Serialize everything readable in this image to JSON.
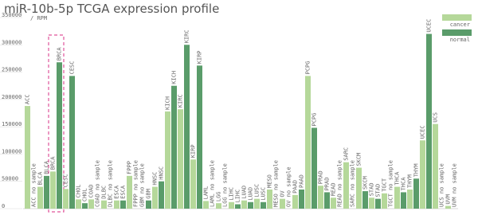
{
  "chart_data": {
    "type": "bar",
    "title": "miR-10b-5p TCGA expression profile",
    "y_label": "/ RPM",
    "missing_label": "no sample",
    "categories": [
      "ACC",
      "BLCA",
      "BRCA",
      "CESC",
      "CHOL",
      "COAD",
      "DLBC",
      "ESCA",
      "FPPP",
      "GBM",
      "HNSC",
      "KICH",
      "KIRC",
      "KIRP",
      "LAML",
      "LGG",
      "LIHC",
      "LUAD",
      "LUSC",
      "MESO",
      "OV",
      "PAAD",
      "PCPG",
      "PRAD",
      "READ",
      "SARC",
      "SKCM",
      "STAD",
      "TGCT",
      "THCA",
      "THYM",
      "UCEC",
      "UCS",
      "UVM"
    ],
    "series": [
      {
        "name": "cancer",
        "color": "#b5d89a",
        "values": [
          188000,
          40000,
          68000,
          36000,
          17000,
          17000,
          15000,
          15000,
          60000,
          null,
          40000,
          178000,
          182000,
          90000,
          14000,
          10000,
          12000,
          15000,
          18000,
          35000,
          18000,
          25000,
          243000,
          42000,
          20000,
          85000,
          75000,
          20000,
          28000,
          40000,
          35000,
          125000,
          155000,
          5000
        ]
      },
      {
        "name": "normal",
        "color": "#5a9c6a",
        "values": [
          null,
          60000,
          268000,
          243000,
          10000,
          null,
          null,
          15000,
          null,
          15000,
          50000,
          225000,
          300000,
          262000,
          null,
          null,
          8000,
          12000,
          12000,
          null,
          null,
          35000,
          148000,
          30000,
          null,
          null,
          32000,
          18000,
          null,
          30000,
          55000,
          320000,
          null,
          null
        ]
      }
    ],
    "ylim": [
      0,
      350000
    ],
    "yticks": [
      0,
      50000,
      100000,
      150000,
      200000,
      250000,
      300000,
      350000
    ],
    "legend": "top-right"
  }
}
